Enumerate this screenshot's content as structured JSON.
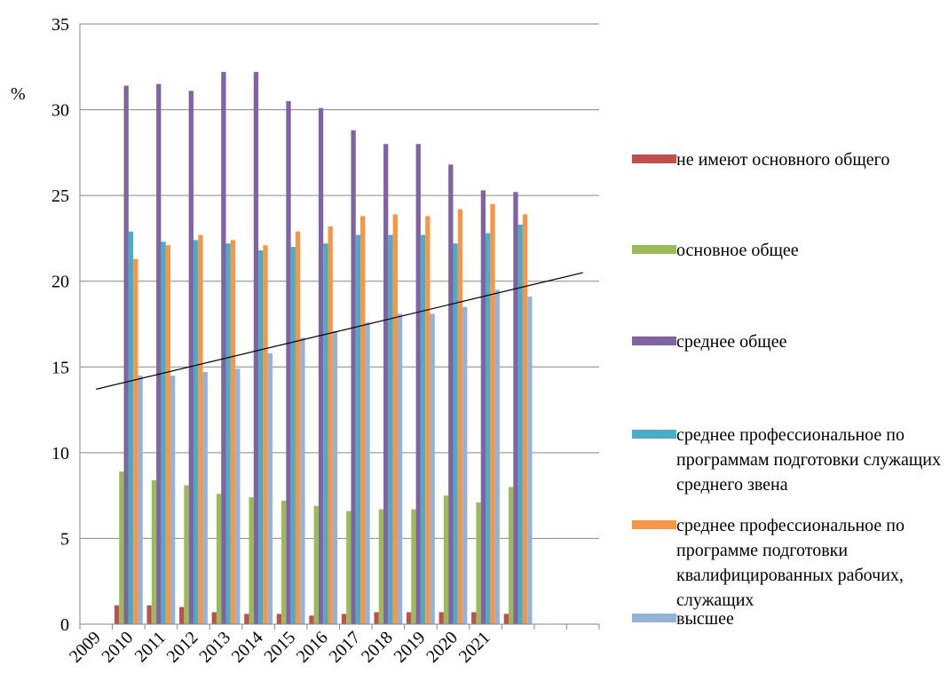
{
  "chart_data": {
    "type": "bar",
    "y_label": "%",
    "categories": [
      "2009",
      "2010",
      "2011",
      "2012",
      "2013",
      "2014",
      "2015",
      "2016",
      "2017",
      "2018",
      "2019",
      "2020",
      "2021",
      null,
      null,
      null
    ],
    "series": [
      {
        "name": "не имеют основного общего",
        "color": "#c0504d",
        "values": [
          null,
          1.1,
          1.1,
          1.0,
          0.7,
          0.6,
          0.6,
          0.5,
          0.6,
          0.7,
          0.7,
          0.7,
          0.7,
          0.6,
          null,
          null
        ]
      },
      {
        "name": "основное общее",
        "color": "#9bbb59",
        "values": [
          null,
          8.9,
          8.4,
          8.1,
          7.6,
          7.4,
          7.2,
          6.9,
          6.6,
          6.7,
          6.7,
          7.5,
          7.1,
          8.0,
          null,
          null
        ]
      },
      {
        "name": "среднее общее",
        "color": "#8064a2",
        "values": [
          null,
          31.4,
          31.5,
          31.1,
          32.2,
          32.2,
          30.5,
          30.1,
          28.8,
          28.0,
          28.0,
          26.8,
          25.3,
          25.2,
          null,
          null
        ]
      },
      {
        "name": "среднее профессиональное по программам подготовки служащих среднего звена",
        "color": "#4bacc6",
        "values": [
          null,
          22.9,
          22.3,
          22.4,
          22.2,
          21.8,
          22.0,
          22.2,
          22.7,
          22.7,
          22.7,
          22.2,
          22.8,
          23.3,
          null,
          null
        ]
      },
      {
        "name": "среднее профессиональное по программе подготовки квалифицированных рабочих, служащих",
        "color": "#f79646",
        "values": [
          null,
          21.3,
          22.1,
          22.7,
          22.4,
          22.1,
          22.9,
          23.2,
          23.8,
          23.9,
          23.8,
          24.2,
          24.5,
          23.9,
          null,
          null
        ]
      },
      {
        "name": "высшее",
        "color": "#95b3d7",
        "values": [
          null,
          14.5,
          14.5,
          14.7,
          14.9,
          15.8,
          16.7,
          17.1,
          17.6,
          18.1,
          18.1,
          18.5,
          19.5,
          19.1,
          null,
          null
        ]
      }
    ],
    "trendline": {
      "x": [
        0,
        15
      ],
      "values": [
        13.7,
        20.5
      ],
      "color": "#000000"
    },
    "ylim": [
      0,
      35
    ],
    "yticks": [
      0,
      5,
      10,
      15,
      20,
      25,
      30,
      35
    ],
    "grid": true,
    "legend": "right"
  }
}
